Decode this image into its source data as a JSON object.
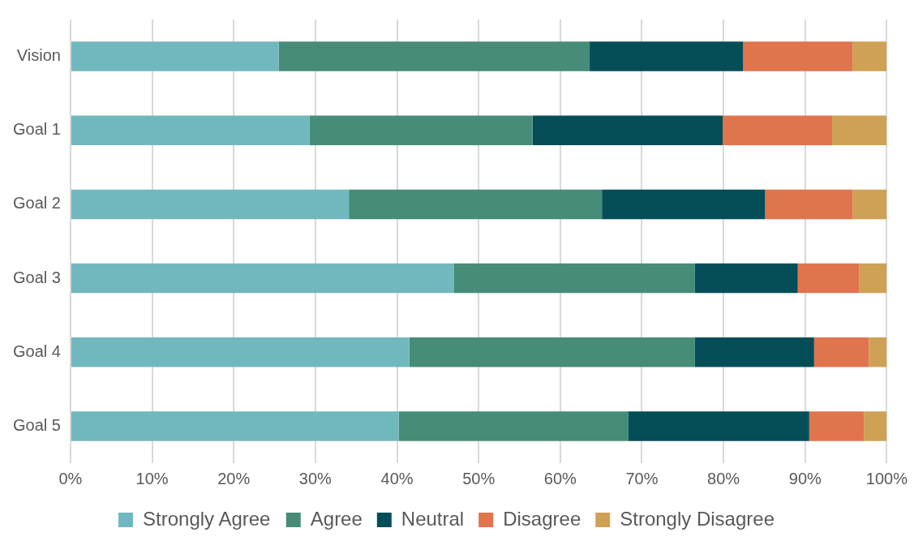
{
  "chart_data": {
    "type": "bar",
    "orientation": "horizontal",
    "stacked": true,
    "categories": [
      "Vision",
      "Goal 1",
      "Goal 2",
      "Goal 3",
      "Goal 4",
      "Goal 5"
    ],
    "series": [
      {
        "name": "Strongly Agree",
        "color": "#71b8be",
        "values": [
          25.5,
          29.3,
          34.1,
          47.0,
          41.5,
          40.2
        ]
      },
      {
        "name": "Agree",
        "color": "#468c78",
        "values": [
          38.1,
          27.3,
          31.0,
          29.5,
          35.0,
          28.1
        ]
      },
      {
        "name": "Neutral",
        "color": "#054e58",
        "values": [
          18.8,
          23.3,
          20.0,
          12.6,
          14.6,
          22.2
        ]
      },
      {
        "name": "Disagree",
        "color": "#e0744c",
        "values": [
          13.4,
          13.4,
          10.7,
          7.5,
          6.7,
          6.7
        ]
      },
      {
        "name": "Strongly Disagree",
        "color": "#cfa154",
        "values": [
          4.2,
          6.7,
          4.2,
          3.4,
          2.2,
          2.8
        ]
      }
    ],
    "xlim": [
      0,
      100
    ],
    "xticks": [
      {
        "value": 0,
        "label": "0%"
      },
      {
        "value": 10,
        "label": "10%"
      },
      {
        "value": 20,
        "label": "20%"
      },
      {
        "value": 30,
        "label": "30%"
      },
      {
        "value": 40,
        "label": "40%"
      },
      {
        "value": 50,
        "label": "50%"
      },
      {
        "value": 60,
        "label": "60%"
      },
      {
        "value": 70,
        "label": "70%"
      },
      {
        "value": 80,
        "label": "80%"
      },
      {
        "value": 90,
        "label": "90%"
      },
      {
        "value": 100,
        "label": "100%"
      }
    ],
    "grid": "x",
    "legend": "bottom"
  }
}
